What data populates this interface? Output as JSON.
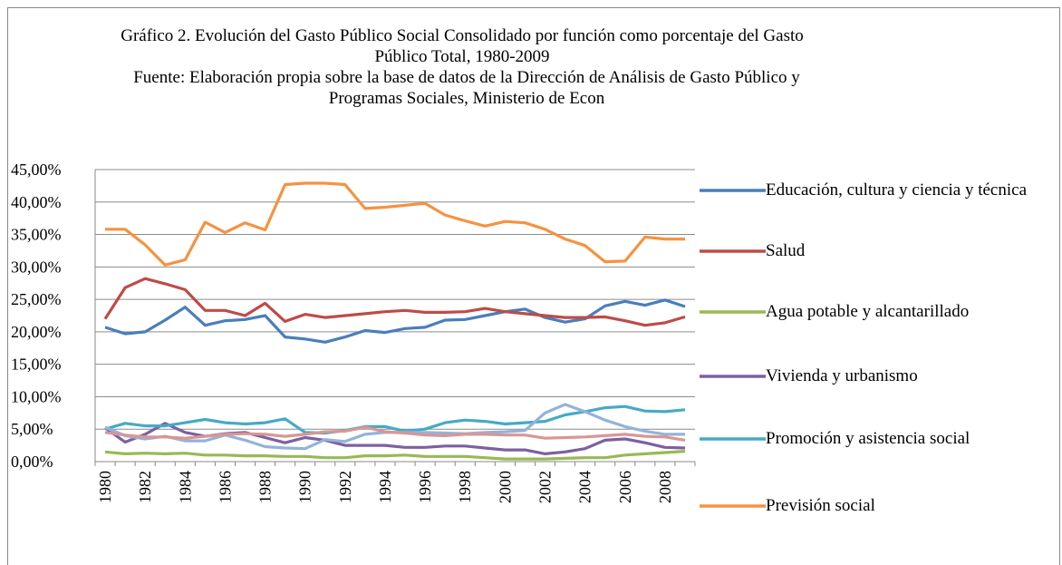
{
  "chart_data": {
    "type": "line",
    "title": "Gráfico 2. Evolución del Gasto Público Social Consolidado por función como porcentaje del Gasto Público Total, 1980-2009",
    "subtitle": "Fuente: Elaboración propia sobre la base de datos de la Dirección de Análisis de Gasto Público y Programas Sociales, Ministerio de Econ",
    "categories": [
      "1980",
      null,
      "1982",
      null,
      "1984",
      null,
      "1986",
      null,
      "1988",
      null,
      "1990",
      null,
      "1992",
      null,
      "1994",
      null,
      "1996",
      null,
      "1998",
      null,
      "2000",
      null,
      "2002",
      null,
      "2004",
      null,
      "2006",
      null,
      "2008",
      null
    ],
    "ylim": [
      0,
      45
    ],
    "yticks": [
      {
        "value": 0,
        "label": "0,00%"
      },
      {
        "value": 5,
        "label": "5,00%"
      },
      {
        "value": 10,
        "label": "10,00%"
      },
      {
        "value": 15,
        "label": "15,00%"
      },
      {
        "value": 20,
        "label": "20,00%"
      },
      {
        "value": 25,
        "label": "25,00%"
      },
      {
        "value": 30,
        "label": "30,00%"
      },
      {
        "value": 35,
        "label": "35,00%"
      },
      {
        "value": 40,
        "label": "40,00%"
      },
      {
        "value": 45,
        "label": "45,00%"
      }
    ],
    "grid": true,
    "legend": "right",
    "series": [
      {
        "name": "Educación, cultura y ciencia y técnica",
        "color": "#4a7ebb",
        "values": [
          20.7,
          19.7,
          20.0,
          21.8,
          23.8,
          21.0,
          21.7,
          21.9,
          22.5,
          19.2,
          18.9,
          18.4,
          19.2,
          20.2,
          19.9,
          20.5,
          20.7,
          21.8,
          21.9,
          22.5,
          23.1,
          23.5,
          22.2,
          21.5,
          22.0,
          24.0,
          24.7,
          24.1,
          24.9,
          23.9
        ]
      },
      {
        "name": "Salud",
        "color": "#be4b48",
        "values": [
          22.0,
          26.8,
          28.2,
          27.4,
          26.5,
          23.3,
          23.3,
          22.5,
          24.4,
          21.6,
          22.7,
          22.2,
          22.5,
          22.8,
          23.1,
          23.3,
          23.0,
          23.0,
          23.1,
          23.6,
          23.1,
          22.8,
          22.5,
          22.2,
          22.2,
          22.3,
          21.7,
          21.0,
          21.4,
          22.3
        ]
      },
      {
        "name": "Agua potable y alcantarillado",
        "color": "#98b954",
        "values": [
          1.5,
          1.2,
          1.3,
          1.2,
          1.3,
          1.0,
          1.0,
          0.9,
          0.9,
          0.8,
          0.8,
          0.6,
          0.6,
          0.9,
          0.9,
          1.0,
          0.8,
          0.8,
          0.8,
          0.6,
          0.4,
          0.4,
          0.4,
          0.5,
          0.6,
          0.6,
          1.0,
          1.2,
          1.4,
          1.6
        ]
      },
      {
        "name": "Vivienda y urbanismo",
        "color": "#7d60a0",
        "values": [
          5.2,
          3.0,
          4.2,
          5.9,
          4.5,
          3.9,
          4.3,
          4.5,
          3.7,
          2.9,
          3.7,
          3.3,
          2.5,
          2.5,
          2.5,
          2.2,
          2.2,
          2.4,
          2.4,
          2.1,
          1.8,
          1.8,
          1.2,
          1.5,
          2.0,
          3.3,
          3.5,
          2.9,
          2.2,
          2.1
        ]
      },
      {
        "name": "Promoción y asistencia social",
        "color": "#46aac5",
        "values": [
          5.0,
          5.9,
          5.5,
          5.5,
          6.0,
          6.5,
          6.0,
          5.8,
          6.0,
          6.6,
          4.5,
          4.4,
          4.8,
          5.4,
          5.4,
          4.7,
          5.0,
          6.0,
          6.4,
          6.2,
          5.8,
          6.0,
          6.2,
          7.2,
          7.7,
          8.3,
          8.5,
          7.8,
          7.7,
          8.0
        ]
      },
      {
        "name": "Previsión social",
        "color": "#f69240",
        "values": [
          35.8,
          35.8,
          33.4,
          30.3,
          31.1,
          36.9,
          35.3,
          36.8,
          35.7,
          42.7,
          42.9,
          42.9,
          42.7,
          39.0,
          39.2,
          39.5,
          39.8,
          38.0,
          37.1,
          36.3,
          37.0,
          36.8,
          35.8,
          34.3,
          33.3,
          30.8,
          30.9,
          34.6,
          34.3,
          34.3
        ]
      },
      {
        "color": "#93b3d9",
        "values": [
          5.3,
          4.0,
          3.5,
          3.9,
          3.2,
          3.2,
          4.1,
          3.3,
          2.3,
          2.1,
          2.0,
          3.4,
          3.1,
          4.2,
          4.5,
          4.5,
          4.5,
          4.4,
          4.3,
          4.5,
          4.6,
          4.8,
          7.5,
          8.8,
          7.7,
          6.4,
          5.4,
          4.7,
          4.2,
          4.2
        ]
      },
      {
        "color": "#d99694",
        "values": [
          4.5,
          4.1,
          3.8,
          3.8,
          3.6,
          3.9,
          4.2,
          4.3,
          4.2,
          3.9,
          4.2,
          4.6,
          4.7,
          5.3,
          4.6,
          4.4,
          4.1,
          4.0,
          4.2,
          4.2,
          4.1,
          4.1,
          3.6,
          3.7,
          3.8,
          4.0,
          4.2,
          3.9,
          3.8,
          3.3
        ]
      }
    ]
  }
}
